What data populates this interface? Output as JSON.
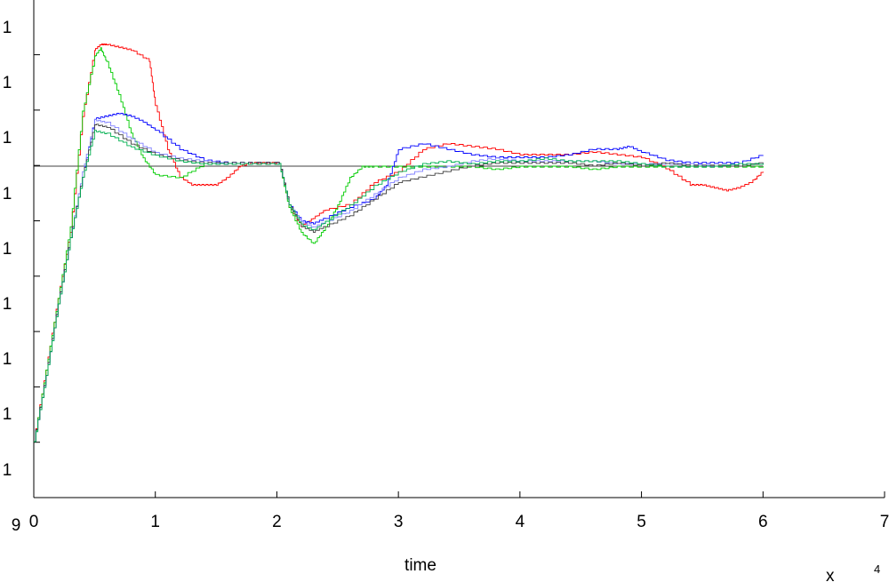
{
  "chart_data": {
    "type": "line",
    "title": "",
    "xlabel": "time",
    "ylabel": "",
    "x_multiplier_label": "x",
    "x_exponent_label": "4",
    "xlim": [
      0,
      7
    ],
    "x_ticks": [
      0,
      1,
      2,
      3,
      4,
      5,
      6,
      7
    ],
    "x_tick_labels": [
      "0",
      "1",
      "2",
      "3",
      "4",
      "5",
      "6",
      "7"
    ],
    "y_tick_labels": [
      "9",
      "1",
      "1",
      "1",
      "1",
      "1",
      "1",
      "1",
      "1",
      "1"
    ],
    "grid": false,
    "reference_line": {
      "y": 1.0,
      "color": "#000000"
    },
    "series": [
      {
        "color": "#ff0000",
        "x": [
          0,
          0.1,
          0.2,
          0.3,
          0.4,
          0.5,
          0.55,
          0.6,
          0.7,
          0.8,
          0.95,
          1.0,
          1.1,
          1.2,
          1.3,
          1.4,
          1.5,
          1.6,
          1.7,
          1.8,
          1.9,
          2.02,
          2.1,
          2.2,
          2.3,
          2.4,
          2.6,
          2.8,
          3.0,
          3.2,
          3.4,
          3.6,
          3.8,
          4.0,
          4.2,
          4.4,
          4.6,
          4.8,
          5.0,
          5.2,
          5.4,
          5.5,
          5.6,
          5.7,
          5.8,
          5.9,
          6.0
        ],
        "values": [
          0.0,
          0.26,
          0.52,
          0.76,
          1.18,
          1.42,
          1.44,
          1.44,
          1.43,
          1.42,
          1.38,
          1.22,
          1.06,
          0.96,
          0.93,
          0.93,
          0.93,
          0.96,
          1.0,
          1.01,
          1.01,
          1.01,
          0.85,
          0.78,
          0.81,
          0.84,
          0.86,
          0.94,
          0.98,
          1.06,
          1.08,
          1.07,
          1.06,
          1.04,
          1.04,
          1.04,
          1.05,
          1.04,
          1.03,
          0.99,
          0.93,
          0.93,
          0.92,
          0.91,
          0.92,
          0.94,
          0.98
        ]
      },
      {
        "color": "#00cc00",
        "x": [
          0,
          0.1,
          0.2,
          0.3,
          0.4,
          0.5,
          0.55,
          0.6,
          0.7,
          0.8,
          0.9,
          1.0,
          1.2,
          1.4,
          1.6,
          1.8,
          2.02,
          2.1,
          2.2,
          2.3,
          2.4,
          2.5,
          2.6,
          2.7,
          2.8,
          3.0,
          3.2,
          3.4,
          3.6,
          3.8,
          4.0,
          4.2,
          4.4,
          4.6,
          4.8,
          5.0,
          5.2,
          5.4,
          5.6,
          5.8,
          6.0
        ],
        "values": [
          0.0,
          0.26,
          0.52,
          0.78,
          1.2,
          1.4,
          1.43,
          1.38,
          1.26,
          1.12,
          1.03,
          0.97,
          0.96,
          1.01,
          1.01,
          1.01,
          1.01,
          0.85,
          0.76,
          0.72,
          0.78,
          0.86,
          0.96,
          1.0,
          1.0,
          1.0,
          1.0,
          1.0,
          1.0,
          0.99,
          1.0,
          1.0,
          1.0,
          0.99,
          1.0,
          1.0,
          1.0,
          1.0,
          1.0,
          1.0,
          1.0
        ]
      },
      {
        "color": "#0000ff",
        "x": [
          0,
          0.1,
          0.2,
          0.3,
          0.4,
          0.5,
          0.6,
          0.7,
          0.8,
          0.9,
          1.0,
          1.2,
          1.4,
          1.6,
          1.8,
          2.02,
          2.1,
          2.2,
          2.3,
          2.4,
          2.6,
          2.8,
          2.9,
          3.0,
          3.2,
          3.4,
          3.6,
          3.8,
          4.0,
          4.2,
          4.4,
          4.6,
          4.8,
          4.9,
          5.0,
          5.2,
          5.4,
          5.6,
          5.8,
          6.0
        ],
        "values": [
          0.0,
          0.24,
          0.5,
          0.74,
          0.96,
          1.17,
          1.18,
          1.19,
          1.18,
          1.16,
          1.13,
          1.06,
          1.02,
          1.01,
          1.01,
          1.01,
          0.86,
          0.8,
          0.79,
          0.81,
          0.85,
          0.88,
          0.93,
          1.06,
          1.08,
          1.06,
          1.04,
          1.03,
          1.03,
          1.03,
          1.04,
          1.06,
          1.06,
          1.07,
          1.05,
          1.02,
          1.01,
          1.01,
          1.01,
          1.04
        ]
      },
      {
        "color": "#8080ff",
        "x": [
          0,
          0.1,
          0.2,
          0.3,
          0.4,
          0.5,
          0.6,
          0.8,
          1.0,
          1.2,
          1.4,
          1.6,
          1.8,
          2.02,
          2.1,
          2.2,
          2.3,
          2.4,
          2.6,
          2.8,
          3.0,
          3.2,
          3.4,
          3.6,
          3.8,
          4.0,
          4.2,
          4.4,
          4.6,
          4.8,
          5.0,
          5.2,
          5.4,
          5.6,
          5.8,
          6.0
        ],
        "values": [
          0.0,
          0.24,
          0.5,
          0.74,
          0.98,
          1.17,
          1.16,
          1.1,
          1.05,
          1.03,
          1.02,
          1.01,
          1.01,
          1.01,
          0.86,
          0.8,
          0.78,
          0.8,
          0.84,
          0.9,
          0.96,
          0.99,
          1.0,
          1.02,
          1.03,
          1.02,
          1.02,
          1.02,
          1.02,
          1.01,
          1.01,
          1.01,
          1.01,
          1.0,
          1.01,
          1.01
        ]
      },
      {
        "color": "#404040",
        "x": [
          0,
          0.1,
          0.2,
          0.3,
          0.4,
          0.5,
          0.6,
          0.8,
          1.0,
          1.2,
          1.4,
          1.6,
          1.8,
          2.02,
          2.1,
          2.2,
          2.3,
          2.4,
          2.6,
          2.8,
          3.0,
          3.2,
          3.4,
          3.6,
          3.8,
          4.0,
          4.2,
          4.4,
          4.6,
          4.8,
          5.0,
          5.2,
          5.4,
          5.6,
          5.8,
          6.0
        ],
        "values": [
          0.0,
          0.24,
          0.5,
          0.74,
          0.96,
          1.15,
          1.14,
          1.08,
          1.04,
          1.02,
          1.01,
          1.01,
          1.01,
          1.01,
          0.86,
          0.78,
          0.76,
          0.78,
          0.82,
          0.88,
          0.94,
          0.96,
          0.98,
          1.0,
          1.01,
          1.01,
          1.01,
          1.01,
          1.0,
          1.01,
          1.0,
          1.01,
          1.0,
          1.0,
          1.0,
          1.01
        ]
      },
      {
        "color": "#00b050",
        "x": [
          0,
          0.1,
          0.2,
          0.3,
          0.4,
          0.5,
          0.6,
          0.8,
          1.0,
          1.2,
          1.4,
          1.6,
          1.8,
          2.02,
          2.1,
          2.2,
          2.3,
          2.4,
          2.6,
          2.8,
          3.0,
          3.2,
          3.4,
          3.6,
          3.8,
          4.0,
          4.2,
          4.4,
          4.6,
          4.8,
          5.0,
          5.2,
          5.4,
          5.6,
          5.8,
          6.0
        ],
        "values": [
          0.0,
          0.24,
          0.5,
          0.74,
          0.96,
          1.13,
          1.12,
          1.07,
          1.04,
          1.02,
          1.01,
          1.01,
          1.01,
          1.01,
          0.86,
          0.79,
          0.77,
          0.8,
          0.86,
          0.93,
          0.98,
          1.01,
          1.02,
          1.01,
          1.02,
          1.02,
          1.03,
          1.02,
          1.02,
          1.02,
          1.01,
          1.0,
          1.0,
          1.0,
          1.01,
          1.01
        ]
      }
    ]
  }
}
